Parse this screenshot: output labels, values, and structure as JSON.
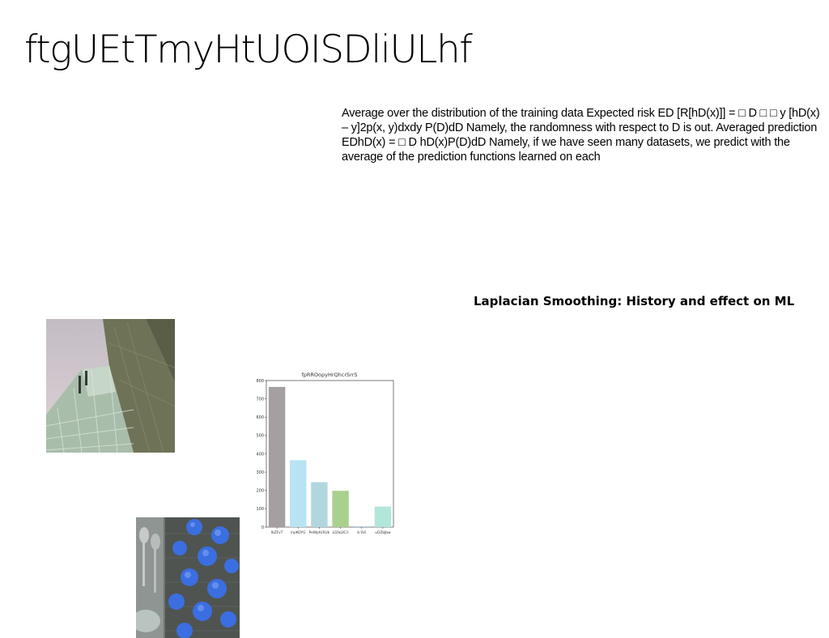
{
  "page": {
    "title": "ftgUEtTmyHtUOISDliULhf",
    "paragraph": "Average over the distribution of the training data Expected risk ED [R[hD(x)]] = □ D □ □ y [hD(x) – y]2p(x, y)dxdy P(D)dD Namely, the randomness with respect to D is out. Averaged prediction EDhD(x) = □ D hD(x)P(D)dD Namely, if we have seen many datasets, we predict with the average of the prediction functions learned on each",
    "subheading": "Laplacian Smoothing: History and effect on ML"
  },
  "images": {
    "building": "photo-building-glass-facade",
    "food": "photo-blue-tarts-with-spoons"
  },
  "chart_data": {
    "type": "bar",
    "title": "fpRROopyHrQhcrSrrS",
    "categories": [
      "lbZFvT",
      "lnpKOYG",
      "PeWptUXUk",
      "LGfaLtCrl",
      "b SVi",
      "uOZbJbw"
    ],
    "values": [
      765,
      365,
      245,
      198,
      5,
      112
    ],
    "colors": [
      "#a59fa2",
      "#b7e3f2",
      "#b1d6de",
      "#a9d18e",
      "#b9d3e6",
      "#b3e6da"
    ],
    "ylim": [
      0,
      800
    ],
    "yticks": [
      0,
      100,
      200,
      300,
      400,
      500,
      600,
      700,
      800
    ],
    "xlabel": "",
    "ylabel": "",
    "grid": false
  }
}
